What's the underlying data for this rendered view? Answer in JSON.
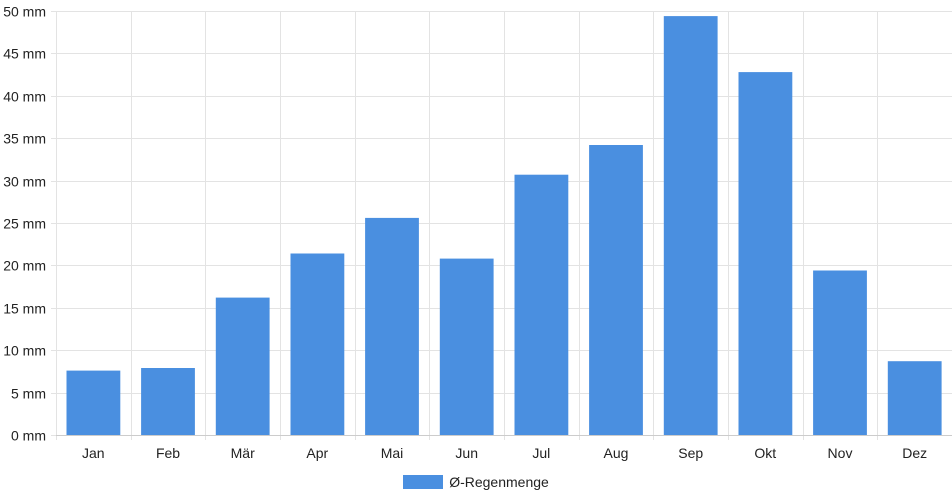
{
  "colors": {
    "bar": "#4a8fe0",
    "grid": "#e3e3e3",
    "axis": "#cccccc",
    "text": "#222222"
  },
  "chart_data": {
    "type": "bar",
    "categories": [
      "Jan",
      "Feb",
      "Mär",
      "Apr",
      "Mai",
      "Jun",
      "Jul",
      "Aug",
      "Sep",
      "Okt",
      "Nov",
      "Dez"
    ],
    "series": [
      {
        "name": "Ø-Regenmenge",
        "values": [
          7.6,
          7.9,
          16.2,
          21.4,
          25.6,
          20.8,
          30.7,
          34.2,
          49.4,
          42.8,
          19.4,
          8.7
        ]
      }
    ],
    "ylim": [
      0,
      50
    ],
    "yticks": [
      0,
      5,
      10,
      15,
      20,
      25,
      30,
      35,
      40,
      45,
      50
    ],
    "y_unit": "mm",
    "grid": true,
    "legend": "bottom-center"
  }
}
